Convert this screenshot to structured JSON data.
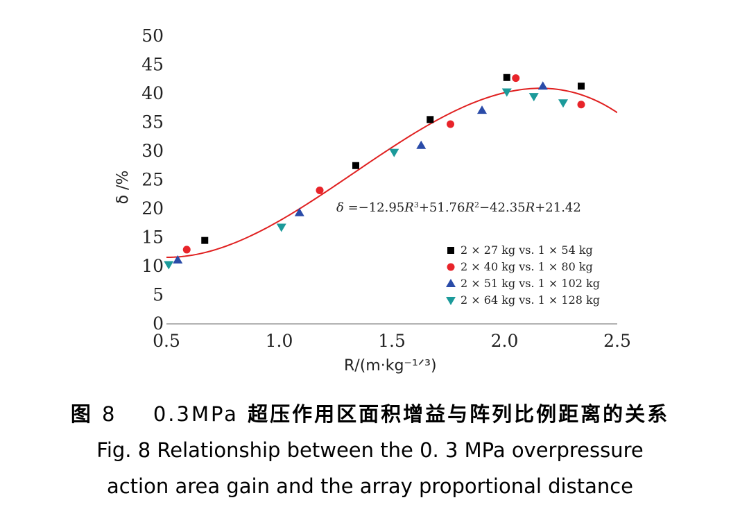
{
  "chart_data": {
    "type": "scatter",
    "xlabel": "R/(m·kg⁻¹ᐟ³)",
    "ylabel": "δ /%",
    "xlim": [
      0.5,
      2.5
    ],
    "ylim": [
      0,
      50
    ],
    "xticks": [
      "0.5",
      "1.0",
      "1.5",
      "2.0",
      "2.5"
    ],
    "yticks": [
      "0",
      "5",
      "10",
      "15",
      "20",
      "25",
      "30",
      "35",
      "40",
      "45",
      "50"
    ],
    "grid": false,
    "legend_position": "bottom-right",
    "series": [
      {
        "name": "2 × 27 kg vs. 1 × 54 kg",
        "marker": "square",
        "color": "#000000",
        "points": [
          [
            0.67,
            14.5
          ],
          [
            1.34,
            27.5
          ],
          [
            1.67,
            35.5
          ],
          [
            2.01,
            42.8
          ],
          [
            2.34,
            41.3
          ]
        ]
      },
      {
        "name": "2 × 40 kg vs. 1 × 80 kg",
        "marker": "circle",
        "color": "#e8242a",
        "points": [
          [
            0.59,
            12.9
          ],
          [
            1.18,
            23.2
          ],
          [
            1.76,
            34.7
          ],
          [
            2.05,
            42.7
          ],
          [
            2.34,
            38.1
          ]
        ]
      },
      {
        "name": "2 × 51 kg vs. 1 × 102 kg",
        "marker": "triangle-up",
        "color": "#2a4ba8",
        "points": [
          [
            0.55,
            11.1
          ],
          [
            1.09,
            19.3
          ],
          [
            1.63,
            31.0
          ],
          [
            1.9,
            37.1
          ],
          [
            2.17,
            41.3
          ]
        ]
      },
      {
        "name": "2 × 64 kg vs. 1 × 128 kg",
        "marker": "triangle-down",
        "color": "#1b9a9a",
        "points": [
          [
            0.51,
            10.3
          ],
          [
            1.01,
            16.8
          ],
          [
            1.51,
            29.8
          ],
          [
            2.01,
            40.3
          ],
          [
            2.13,
            39.5
          ],
          [
            2.26,
            38.4
          ]
        ]
      }
    ],
    "fit": {
      "color": "#e02020",
      "coefficients": [
        -12.95,
        51.76,
        -42.35,
        21.42
      ],
      "x_range": [
        0.5,
        2.5
      ],
      "equation_parts": {
        "lhs": "δ",
        "t1": " =−12.95",
        "v1": "R",
        "p1": "3",
        "t2": "+51.76",
        "v2": "R",
        "p2": "2",
        "t3": "−42.35",
        "v3": "R",
        "t4": "+21.42"
      }
    }
  },
  "caption": {
    "zh_prefix": "图",
    "zh_number": "8",
    "zh_value": "0.3MPa",
    "zh_text": "超压作用区面积增益与阵列比例距离的关系",
    "en_line1": "Fig. 8    Relationship between the 0. 3 MPa overpressure",
    "en_line2": "action area gain and the array proportional distance"
  }
}
